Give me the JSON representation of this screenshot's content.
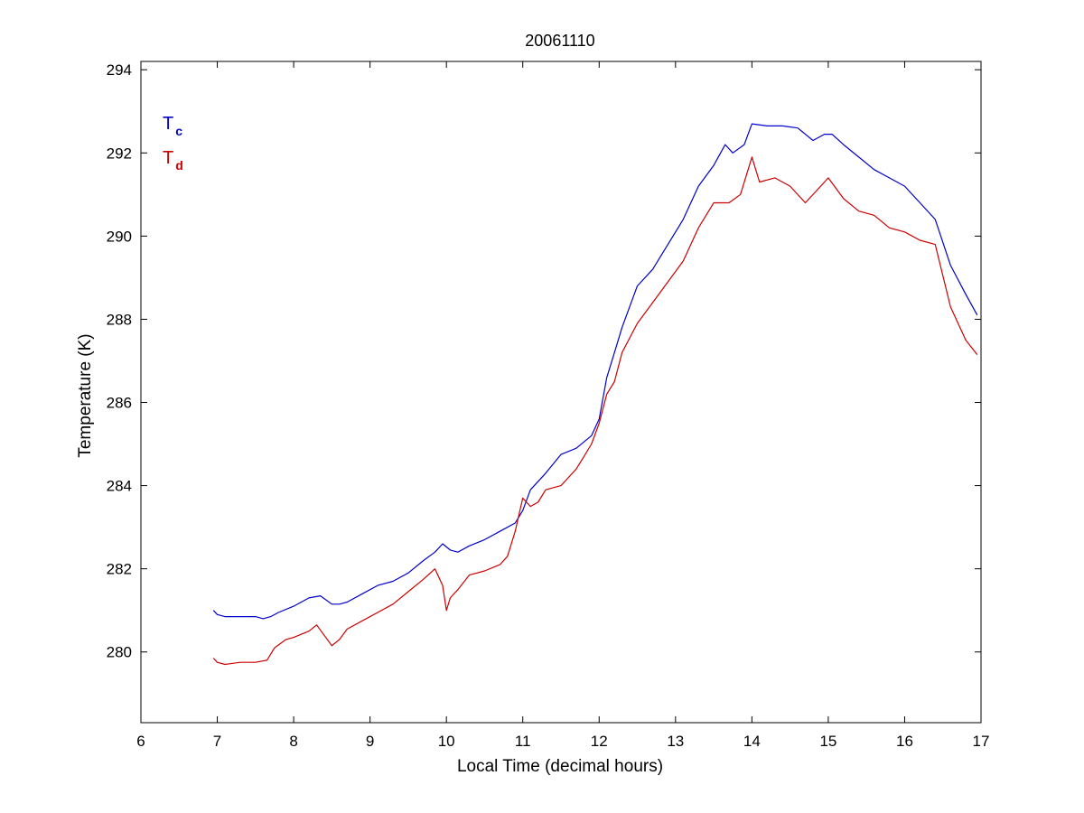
{
  "chart_data": {
    "type": "line",
    "title": "20061110",
    "xlabel": "Local Time (decimal hours)",
    "ylabel": "Temperature (K)",
    "xlim": [
      6,
      17
    ],
    "ylim": [
      278.3,
      294.2
    ],
    "xticks": [
      6,
      7,
      8,
      9,
      10,
      11,
      12,
      13,
      14,
      15,
      16,
      17
    ],
    "yticks": [
      280,
      282,
      284,
      286,
      288,
      290,
      292,
      294
    ],
    "grid": false,
    "legend_position": "top-left",
    "series": [
      {
        "name": "T",
        "subscript": "c",
        "color": "#0000cc",
        "x": [
          6.95,
          7.0,
          7.1,
          7.3,
          7.5,
          7.6,
          7.7,
          7.8,
          8.0,
          8.2,
          8.35,
          8.5,
          8.6,
          8.7,
          8.9,
          9.1,
          9.3,
          9.5,
          9.7,
          9.85,
          9.95,
          10.05,
          10.15,
          10.3,
          10.5,
          10.7,
          10.9,
          11.0,
          11.1,
          11.3,
          11.5,
          11.7,
          11.9,
          12.0,
          12.1,
          12.2,
          12.3,
          12.5,
          12.7,
          12.9,
          13.1,
          13.3,
          13.5,
          13.65,
          13.75,
          13.9,
          14.0,
          14.2,
          14.4,
          14.6,
          14.8,
          14.95,
          15.05,
          15.2,
          15.4,
          15.6,
          15.8,
          16.0,
          16.2,
          16.4,
          16.6,
          16.8,
          16.95
        ],
        "values": [
          281.0,
          280.9,
          280.85,
          280.85,
          280.85,
          280.8,
          280.85,
          280.95,
          281.1,
          281.3,
          281.35,
          281.15,
          281.15,
          281.2,
          281.4,
          281.6,
          281.7,
          281.9,
          282.2,
          282.4,
          282.6,
          282.45,
          282.4,
          282.55,
          282.7,
          282.9,
          283.1,
          283.4,
          283.9,
          284.3,
          284.75,
          284.9,
          285.2,
          285.6,
          286.6,
          287.2,
          287.8,
          288.8,
          289.2,
          289.8,
          290.4,
          291.2,
          291.7,
          292.2,
          292.0,
          292.2,
          292.7,
          292.65,
          292.65,
          292.6,
          292.3,
          292.45,
          292.45,
          292.2,
          291.9,
          291.6,
          291.4,
          291.2,
          290.8,
          290.4,
          289.3,
          288.6,
          288.1
        ]
      },
      {
        "name": "T",
        "subscript": "d",
        "color": "#cc0000",
        "x": [
          6.95,
          7.0,
          7.1,
          7.3,
          7.5,
          7.65,
          7.75,
          7.9,
          8.0,
          8.2,
          8.3,
          8.4,
          8.5,
          8.6,
          8.7,
          8.9,
          9.1,
          9.3,
          9.5,
          9.7,
          9.85,
          9.95,
          10.0,
          10.05,
          10.15,
          10.3,
          10.5,
          10.7,
          10.8,
          10.9,
          11.0,
          11.1,
          11.2,
          11.3,
          11.5,
          11.7,
          11.8,
          11.9,
          12.0,
          12.1,
          12.2,
          12.3,
          12.5,
          12.7,
          12.9,
          13.1,
          13.3,
          13.5,
          13.7,
          13.85,
          14.0,
          14.1,
          14.3,
          14.5,
          14.7,
          14.9,
          15.0,
          15.2,
          15.4,
          15.6,
          15.8,
          16.0,
          16.2,
          16.4,
          16.6,
          16.8,
          16.95
        ],
        "values": [
          279.85,
          279.75,
          279.7,
          279.75,
          279.75,
          279.8,
          280.1,
          280.3,
          280.35,
          280.5,
          280.65,
          280.4,
          280.15,
          280.3,
          280.55,
          280.75,
          280.95,
          281.15,
          281.45,
          281.75,
          282.0,
          281.6,
          281.0,
          281.3,
          281.5,
          281.85,
          281.95,
          282.1,
          282.3,
          282.9,
          283.7,
          283.5,
          283.6,
          283.9,
          284.0,
          284.4,
          284.7,
          285.0,
          285.5,
          286.2,
          286.5,
          287.2,
          287.9,
          288.4,
          288.9,
          289.4,
          290.2,
          290.8,
          290.8,
          291.0,
          291.9,
          291.3,
          291.4,
          291.2,
          290.8,
          291.2,
          291.4,
          290.9,
          290.6,
          290.5,
          290.2,
          290.1,
          289.9,
          289.8,
          288.3,
          287.5,
          287.15
        ]
      }
    ]
  }
}
